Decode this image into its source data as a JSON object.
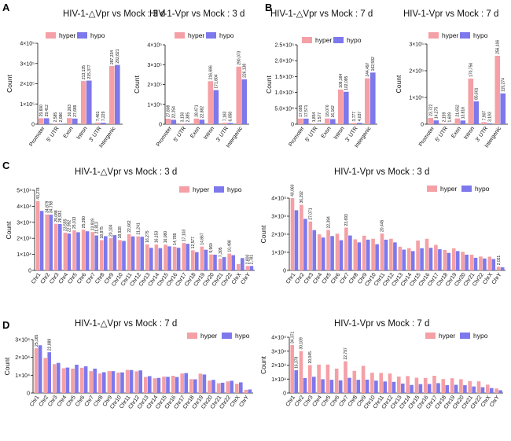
{
  "colors": {
    "hyper": "#f4a0a6",
    "hypo": "#7d78ec"
  },
  "chart_data": [
    {
      "panel": "A",
      "type": "bar",
      "title": "HIV-1-△Vpr vs Mock : 3 d",
      "ylabel": "Count",
      "ylim": [
        0,
        400000
      ],
      "yticks": [
        "0",
        "1×10⁵",
        "2×10⁵",
        "3×10⁵",
        "4×10⁵"
      ],
      "categories": [
        "Promoter",
        "5' UTR",
        "Exon",
        "Intron",
        "3' UTR",
        "Intergenic"
      ],
      "series": [
        {
          "name": "hyper",
          "values": [
            29600,
            2585,
            30263,
            213135,
            7461,
            287234
          ],
          "labels": [
            "29,600",
            "2,585",
            "30,263",
            "213,135",
            "7,461",
            "287,234"
          ]
        },
        {
          "name": "hypo",
          "values": [
            29412,
            2086,
            27689,
            215377,
            7229,
            292821
          ],
          "labels": [
            "29,412",
            "2,086",
            "27,689",
            "215,377",
            "7,229",
            "292,821"
          ]
        }
      ]
    },
    {
      "panel": "A2",
      "type": "bar",
      "title": "HIV-1-Vpr vs Mock : 3 d",
      "ylabel": "Count",
      "ylim": [
        0,
        400000
      ],
      "yticks": [
        "0",
        "1×10⁵",
        "2×10⁵",
        "3×10⁵",
        "4×10⁵"
      ],
      "categories": [
        "Promoter",
        "5' UTR",
        "Exon",
        "Intron",
        "3' UTR",
        "Intergenic"
      ],
      "series": [
        {
          "name": "hyper",
          "values": [
            27808,
            3150,
            28471,
            216686,
            7183,
            290073
          ],
          "labels": [
            "27,808",
            "3,150",
            "28,471",
            "216,686",
            "7,183",
            "290,073"
          ]
        },
        {
          "name": "hypo",
          "values": [
            22254,
            2385,
            22882,
            171804,
            6058,
            226138
          ],
          "labels": [
            "22,254",
            "2,385",
            "22,882",
            "171,804",
            "6,058",
            "226,138"
          ]
        }
      ]
    },
    {
      "panel": "B",
      "type": "bar",
      "title": "HIV-1-△Vpr vs Mock : 7 d",
      "ylabel": "Count",
      "ylim": [
        0,
        250000
      ],
      "yticks": [
        "0",
        "5.0×10⁴",
        "1.0×10⁵",
        "1.5×10⁵",
        "2.0×10⁵",
        "2.5×10⁵"
      ],
      "categories": [
        "Promoter",
        "5' UTR",
        "Exon",
        "Intron",
        "3' UTR",
        "Intergenic"
      ],
      "series": [
        {
          "name": "hyper",
          "values": [
            17685,
            1854,
            18076,
            109164,
            3777,
            144497
          ],
          "labels": [
            "17,685",
            "1,854",
            "18,076",
            "109,164",
            "3,777",
            "144,497"
          ]
        },
        {
          "name": "hypo",
          "values": [
            17571,
            1577,
            16162,
            102095,
            4037,
            162592
          ],
          "labels": [
            "17,571",
            "1,577",
            "16,162",
            "102,095",
            "4,037",
            "162,592"
          ]
        }
      ]
    },
    {
      "panel": "B2",
      "type": "bar",
      "title": "HIV-1-Vpr vs Mock : 7 d",
      "ylabel": "Count",
      "ylim": [
        0,
        300000
      ],
      "yticks": [
        "0",
        "1×10⁵",
        "2×10⁵",
        "3×10⁵"
      ],
      "categories": [
        "Promoter",
        "5' UTR",
        "Exon",
        "Intron",
        "3' UTR",
        "Intergenic"
      ],
      "series": [
        {
          "name": "hyper",
          "values": [
            23722,
            2159,
            21652,
            170756,
            7907,
            256106
          ],
          "labels": [
            "23,722",
            "2,159",
            "21,652",
            "170,756",
            "7,907",
            "256,106"
          ]
        },
        {
          "name": "hypo",
          "values": [
            14275,
            1609,
            13816,
            85601,
            3193,
            115274
          ],
          "labels": [
            "14,275",
            "1,609",
            "13,816",
            "85,601",
            "3,193",
            "115,274"
          ]
        }
      ]
    },
    {
      "panel": "C",
      "type": "bar",
      "title": "HIV-1-△Vpr vs Mock : 3 d",
      "ylabel": "Count",
      "ylim": [
        0,
        50000
      ],
      "yticks": [
        "0",
        "1×10⁴",
        "2×10⁴",
        "3×10⁴",
        "4×10⁴",
        "5×10⁴"
      ],
      "categories": [
        "Chr1",
        "Chr2",
        "Chr3",
        "Chr4",
        "Chr5",
        "Chr6",
        "Chr7",
        "Chr8",
        "Chr9",
        "Chr10",
        "Chr11",
        "Chr12",
        "Chr13",
        "Chr14",
        "Chr15",
        "Chr16",
        "Chr17",
        "Chr18",
        "Chr19",
        "Chr20",
        "Chr21",
        "Chr22",
        "ChrX",
        "ChrY"
      ],
      "series": [
        {
          "name": "hyper",
          "values": [
            43278,
            34879,
            29088,
            23555,
            25013,
            25390,
            23919,
            18875,
            20104,
            18928,
            22662,
            21241,
            16275,
            16153,
            16080,
            14789,
            17103,
            12577,
            14867,
            9960,
            7305,
            10498,
            4000,
            2800
          ],
          "labels": [
            "43,278",
            "34,879",
            "29,088",
            "23,555",
            "25,013",
            "25,390",
            "23,919",
            "18,875",
            "20,104",
            "18,928",
            "22,662",
            "21,241",
            "16,275",
            "16,153",
            "16,080",
            "14,789",
            "17,103",
            "12,577",
            "14,867",
            "9,960",
            "7,305",
            "10,498",
            "",
            "2,800"
          ]
        },
        {
          "name": "hypo",
          "values": [
            37100,
            34758,
            28931,
            22992,
            23800,
            24400,
            21813,
            21350,
            22000,
            18400,
            21200,
            21000,
            14100,
            13900,
            15000,
            14100,
            16600,
            11400,
            12900,
            9800,
            8300,
            9500,
            7700,
            2781
          ],
          "labels": [
            "",
            "34,758",
            "28,931",
            "22,992",
            "",
            "",
            "21,813",
            "",
            "",
            "",
            "",
            "",
            "",
            "",
            "",
            "",
            "",
            "",
            "",
            "",
            "",
            "",
            "",
            "2,781"
          ]
        }
      ]
    },
    {
      "panel": "C2",
      "type": "bar",
      "title": "HIV-1-Vpr vs Mock : 3 d",
      "ylabel": "Count",
      "ylim": [
        0,
        40000
      ],
      "yticks": [
        "0",
        "1×10⁴",
        "2×10⁴",
        "3×10⁴",
        "4×10⁴"
      ],
      "categories": [
        "Chr1",
        "Chr2",
        "Chr3",
        "Chr4",
        "Chr5",
        "Chr6",
        "Chr7",
        "Chr8",
        "Chr9",
        "Chr10",
        "Chr11",
        "Chr12",
        "Chr13",
        "Chr14",
        "Chr15",
        "Chr16",
        "Chr17",
        "Chr18",
        "Chr19",
        "Chr20",
        "Chr21",
        "Chr22",
        "ChrX",
        "ChrY"
      ],
      "series": [
        {
          "name": "hyper",
          "values": [
            40060,
            36292,
            27071,
            19960,
            22394,
            20300,
            23693,
            17200,
            19200,
            17500,
            20445,
            17500,
            13100,
            12300,
            16500,
            17500,
            14100,
            11300,
            12200,
            10300,
            8700,
            7700,
            7600,
            2021
          ],
          "labels": [
            "40,060",
            "36,292",
            "27,071",
            "",
            "22,394",
            "",
            "23,693",
            "",
            "",
            "",
            "20,445",
            "",
            "",
            "",
            "",
            "",
            "",
            "",
            "",
            "",
            "",
            "",
            "",
            "2,021"
          ]
        },
        {
          "name": "hypo",
          "values": [
            33300,
            28500,
            22300,
            18200,
            19000,
            16700,
            19300,
            15500,
            17000,
            14500,
            17000,
            15500,
            11500,
            10700,
            12300,
            12500,
            11700,
            9700,
            10700,
            8700,
            7000,
            6600,
            6300,
            1700
          ],
          "labels": [
            "",
            "",
            "",
            "",
            "",
            "",
            "",
            "",
            "",
            "",
            "",
            "",
            "",
            "",
            "",
            "",
            "",
            "",
            "",
            "",
            "",
            "",
            "",
            ""
          ]
        }
      ]
    },
    {
      "panel": "D",
      "type": "bar",
      "title": "HIV-1-△Vpr vs Mock : 7 d",
      "ylabel": "Count",
      "ylim": [
        0,
        30000
      ],
      "yticks": [
        "0",
        "1×10⁴",
        "2×10⁴",
        "3×10⁴"
      ],
      "categories": [
        "Chr1",
        "Chr2",
        "Chr3",
        "Chr4",
        "Chr5",
        "Chr6",
        "Chr7",
        "Chr8",
        "Chr9",
        "Chr10",
        "Chr11",
        "Chr12",
        "Chr13",
        "Chr14",
        "Chr15",
        "Chr16",
        "Chr17",
        "Chr18",
        "Chr19",
        "Chr20",
        "Chr21",
        "Chr22",
        "ChrX",
        "ChrY"
      ],
      "series": [
        {
          "name": "hyper",
          "values": [
            25165,
            19700,
            16200,
            13900,
            13700,
            14200,
            12300,
            11000,
            12300,
            11500,
            13000,
            12200,
            9000,
            8300,
            9200,
            9700,
            11000,
            7800,
            10900,
            7000,
            5500,
            6500,
            5200,
            1800
          ],
          "labels": [
            "25,165",
            "",
            "",
            "",
            "",
            "",
            "",
            "",
            "",
            "",
            "",
            "",
            "",
            "",
            "",
            "",
            "",
            "",
            "",
            "",
            "",
            "",
            "",
            ""
          ]
        },
        {
          "name": "hypo",
          "values": [
            26800,
            22889,
            16900,
            14300,
            15900,
            15000,
            13700,
            11700,
            12300,
            11600,
            12900,
            12700,
            9500,
            8500,
            9100,
            9000,
            11200,
            7700,
            10400,
            7400,
            5800,
            6900,
            6000,
            2000
          ],
          "labels": [
            "",
            "22,889",
            "",
            "",
            "",
            "",
            "",
            "",
            "",
            "",
            "",
            "",
            "",
            "",
            "",
            "",
            "",
            "",
            "",
            "",
            "",
            "",
            "",
            ""
          ]
        }
      ]
    },
    {
      "panel": "D2",
      "type": "bar",
      "title": "HIV-1-Vpr vs Mock : 7 d",
      "ylabel": "Count",
      "ylim": [
        0,
        40000
      ],
      "yticks": [
        "0",
        "1×10⁴",
        "2×10⁴",
        "3×10⁴",
        "4×10⁴"
      ],
      "categories": [
        "Chr1",
        "Chr2",
        "Chr3",
        "Chr4",
        "Chr5",
        "Chr6",
        "Chr7",
        "Chr8",
        "Chr9",
        "Chr10",
        "Chr11",
        "Chr12",
        "Chr13",
        "Chr14",
        "Chr15",
        "Chr16",
        "Chr17",
        "Chr18",
        "Chr19",
        "Chr20",
        "Chr21",
        "Chr22",
        "ChrX",
        "ChrY"
      ],
      "series": [
        {
          "name": "hyper",
          "values": [
            34371,
            30109,
            20045,
            20385,
            20385,
            17500,
            22797,
            15900,
            19500,
            14500,
            14400,
            14000,
            11800,
            12200,
            11000,
            10800,
            12400,
            10000,
            10600,
            9900,
            8600,
            8400,
            6000,
            3300
          ],
          "labels": [
            "34,371",
            "30,109",
            "20,045",
            "",
            "",
            "",
            "22,797",
            "",
            "",
            "",
            "",
            "",
            "",
            "",
            "",
            "",
            "",
            "",
            "",
            "",
            "",
            "",
            "",
            ""
          ]
        },
        {
          "name": "hypo",
          "values": [
            16378,
            10700,
            11675,
            9900,
            9500,
            9100,
            10900,
            9500,
            9600,
            8900,
            8300,
            8000,
            6800,
            5800,
            6400,
            6500,
            7100,
            5700,
            5900,
            5600,
            4700,
            4200,
            3600,
            2000
          ],
          "labels": [
            "16,378",
            "",
            "",
            "",
            "",
            "",
            "",
            "",
            "",
            "",
            "",
            "",
            "",
            "",
            "",
            "",
            "",
            "",
            "",
            "",
            "",
            "",
            "",
            ""
          ]
        }
      ]
    }
  ],
  "panel_letters": [
    "A",
    "B",
    "C",
    "D"
  ]
}
